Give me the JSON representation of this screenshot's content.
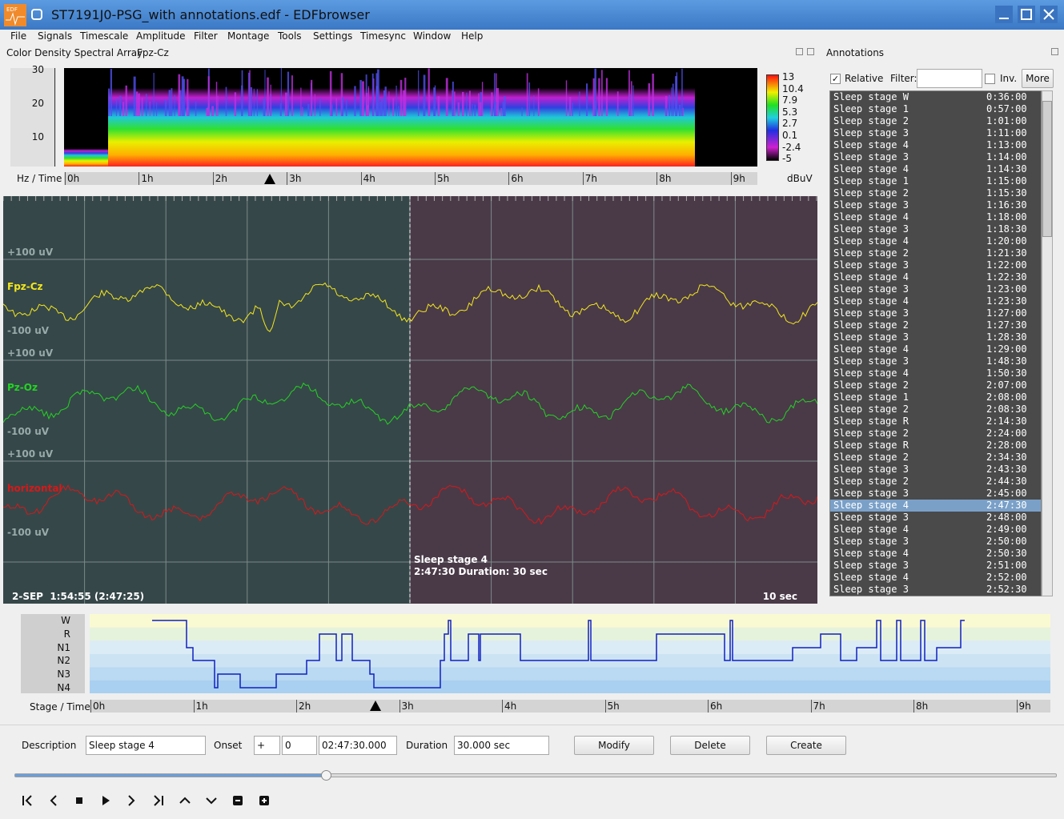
{
  "window": {
    "title": "ST7191J0-PSG_with annotations.edf - EDFbrowser"
  },
  "menu": [
    "File",
    "Signals",
    "Timescale",
    "Amplitude",
    "Filter",
    "Montage",
    "Tools",
    "Settings",
    "Timesync",
    "Window",
    "Help"
  ],
  "cdsa": {
    "title": "Color Density Spectral Array",
    "signal": "Fpz-Cz",
    "yticks": [
      "30",
      "20",
      "10"
    ],
    "axis_label": "Hz / Time",
    "time_labels": [
      "0h",
      "1h",
      "2h",
      "3h",
      "4h",
      "5h",
      "6h",
      "7h",
      "8h",
      "9h"
    ],
    "colorbar_labels": [
      "13",
      "10.4",
      "7.9",
      "5.3",
      "2.7",
      "0.1",
      "-2.4",
      "-5"
    ],
    "unit": "dBuV"
  },
  "signals": {
    "channels": [
      {
        "name": "Fpz-Cz",
        "color": "#f2e61c",
        "top": "+100 uV",
        "bottom": "-100 uV"
      },
      {
        "name": "Pz-Oz",
        "color": "#22d422",
        "top": "+100 uV",
        "bottom": "-100 uV"
      },
      {
        "name": "horizontal",
        "color": "#d81818",
        "top": "+100 uV",
        "bottom": "-100 uV"
      }
    ],
    "annotation": {
      "label": "Sleep stage 4",
      "detail": "2:47:30 Duration: 30 sec"
    },
    "status": "2-SEP  1:54:55 (2:47:25)",
    "timescale": "10 sec"
  },
  "hypnogram": {
    "stages": [
      "W",
      "R",
      "N1",
      "N2",
      "N3",
      "N4"
    ],
    "axis_label": "Stage / Time",
    "time_labels": [
      "0h",
      "1h",
      "2h",
      "3h",
      "4h",
      "5h",
      "6h",
      "7h",
      "8h",
      "9h"
    ]
  },
  "annotations": {
    "title": "Annotations",
    "relative": "Relative",
    "filter": "Filter:",
    "inv": "Inv.",
    "more": "More",
    "rows": [
      [
        "Sleep stage W",
        "0:36:00"
      ],
      [
        "Sleep stage 1",
        "0:57:00"
      ],
      [
        "Sleep stage 2",
        "1:01:00"
      ],
      [
        "Sleep stage 3",
        "1:11:00"
      ],
      [
        "Sleep stage 4",
        "1:13:00"
      ],
      [
        "Sleep stage 3",
        "1:14:00"
      ],
      [
        "Sleep stage 4",
        "1:14:30"
      ],
      [
        "Sleep stage 1",
        "1:15:00"
      ],
      [
        "Sleep stage 2",
        "1:15:30"
      ],
      [
        "Sleep stage 3",
        "1:16:30"
      ],
      [
        "Sleep stage 4",
        "1:18:00"
      ],
      [
        "Sleep stage 3",
        "1:18:30"
      ],
      [
        "Sleep stage 4",
        "1:20:00"
      ],
      [
        "Sleep stage 2",
        "1:21:30"
      ],
      [
        "Sleep stage 3",
        "1:22:00"
      ],
      [
        "Sleep stage 4",
        "1:22:30"
      ],
      [
        "Sleep stage 3",
        "1:23:00"
      ],
      [
        "Sleep stage 4",
        "1:23:30"
      ],
      [
        "Sleep stage 3",
        "1:27:00"
      ],
      [
        "Sleep stage 2",
        "1:27:30"
      ],
      [
        "Sleep stage 3",
        "1:28:30"
      ],
      [
        "Sleep stage 4",
        "1:29:00"
      ],
      [
        "Sleep stage 3",
        "1:48:30"
      ],
      [
        "Sleep stage 4",
        "1:50:30"
      ],
      [
        "Sleep stage 2",
        "2:07:00"
      ],
      [
        "Sleep stage 1",
        "2:08:00"
      ],
      [
        "Sleep stage 2",
        "2:08:30"
      ],
      [
        "Sleep stage R",
        "2:14:30"
      ],
      [
        "Sleep stage 2",
        "2:24:00"
      ],
      [
        "Sleep stage R",
        "2:28:00"
      ],
      [
        "Sleep stage 2",
        "2:34:30"
      ],
      [
        "Sleep stage 3",
        "2:43:30"
      ],
      [
        "Sleep stage 2",
        "2:44:30"
      ],
      [
        "Sleep stage 3",
        "2:45:00"
      ],
      [
        "Sleep stage 4",
        "2:47:30"
      ],
      [
        "Sleep stage 3",
        "2:48:00"
      ],
      [
        "Sleep stage 4",
        "2:49:00"
      ],
      [
        "Sleep stage 3",
        "2:50:00"
      ],
      [
        "Sleep stage 4",
        "2:50:30"
      ],
      [
        "Sleep stage 3",
        "2:51:00"
      ],
      [
        "Sleep stage 4",
        "2:52:00"
      ],
      [
        "Sleep stage 3",
        "2:52:30"
      ]
    ]
  },
  "editor": {
    "description_label": "Description",
    "description": "Sleep stage 4",
    "onset_label": "Onset",
    "sign": "+",
    "days": "0",
    "onset": "02:47:30.000",
    "duration_label": "Duration",
    "duration": "30.000 sec",
    "buttons": [
      "Modify",
      "Delete",
      "Create"
    ]
  }
}
